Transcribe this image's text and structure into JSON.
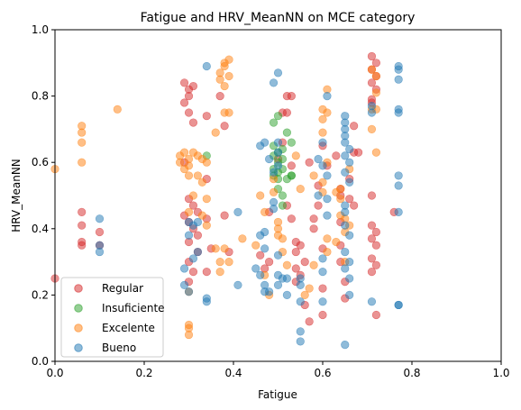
{
  "chart_data": {
    "type": "scatter",
    "title": "Fatigue and HRV_MeanNN on MCE category",
    "xlabel": "Fatigue",
    "ylabel": "HRV_MeanNN",
    "xlim": [
      0,
      1
    ],
    "ylim": [
      0,
      1
    ],
    "xticks": [
      "0.0",
      "0.2",
      "0.4",
      "0.6",
      "0.8",
      "1.0"
    ],
    "yticks": [
      "0.0",
      "0.2",
      "0.4",
      "0.6",
      "0.8",
      "1.0"
    ],
    "grid": false,
    "legend_position": "bottom-left",
    "series": [
      {
        "name": "Regular",
        "color": "#d62728",
        "points": [
          [
            0.0,
            0.25
          ],
          [
            0.06,
            0.45
          ],
          [
            0.06,
            0.41
          ],
          [
            0.06,
            0.36
          ],
          [
            0.06,
            0.35
          ],
          [
            0.1,
            0.35
          ],
          [
            0.1,
            0.39
          ],
          [
            0.29,
            0.84
          ],
          [
            0.3,
            0.82
          ],
          [
            0.29,
            0.78
          ],
          [
            0.3,
            0.8
          ],
          [
            0.31,
            0.83
          ],
          [
            0.3,
            0.75
          ],
          [
            0.31,
            0.72
          ],
          [
            0.29,
            0.6
          ],
          [
            0.3,
            0.49
          ],
          [
            0.31,
            0.47
          ],
          [
            0.29,
            0.44
          ],
          [
            0.3,
            0.42
          ],
          [
            0.31,
            0.4
          ],
          [
            0.32,
            0.38
          ],
          [
            0.3,
            0.36
          ],
          [
            0.32,
            0.33
          ],
          [
            0.3,
            0.3
          ],
          [
            0.31,
            0.27
          ],
          [
            0.3,
            0.24
          ],
          [
            0.32,
            0.45
          ],
          [
            0.34,
            0.74
          ],
          [
            0.34,
            0.55
          ],
          [
            0.34,
            0.43
          ],
          [
            0.35,
            0.34
          ],
          [
            0.34,
            0.27
          ],
          [
            0.37,
            0.8
          ],
          [
            0.38,
            0.71
          ],
          [
            0.38,
            0.44
          ],
          [
            0.39,
            0.33
          ],
          [
            0.46,
            0.32
          ],
          [
            0.47,
            0.28
          ],
          [
            0.48,
            0.3
          ],
          [
            0.48,
            0.45
          ],
          [
            0.5,
            0.61
          ],
          [
            0.51,
            0.66
          ],
          [
            0.51,
            0.75
          ],
          [
            0.52,
            0.75
          ],
          [
            0.52,
            0.8
          ],
          [
            0.53,
            0.8
          ],
          [
            0.53,
            0.59
          ],
          [
            0.52,
            0.47
          ],
          [
            0.53,
            0.43
          ],
          [
            0.54,
            0.36
          ],
          [
            0.54,
            0.33
          ],
          [
            0.54,
            0.28
          ],
          [
            0.54,
            0.24
          ],
          [
            0.55,
            0.35
          ],
          [
            0.55,
            0.26
          ],
          [
            0.56,
            0.3
          ],
          [
            0.56,
            0.17
          ],
          [
            0.57,
            0.12
          ],
          [
            0.57,
            0.6
          ],
          [
            0.58,
            0.43
          ],
          [
            0.58,
            0.4
          ],
          [
            0.59,
            0.53
          ],
          [
            0.59,
            0.47
          ],
          [
            0.6,
            0.34
          ],
          [
            0.6,
            0.22
          ],
          [
            0.6,
            0.14
          ],
          [
            0.6,
            0.65
          ],
          [
            0.61,
            0.59
          ],
          [
            0.63,
            0.62
          ],
          [
            0.64,
            0.52
          ],
          [
            0.64,
            0.5
          ],
          [
            0.64,
            0.42
          ],
          [
            0.64,
            0.35
          ],
          [
            0.64,
            0.3
          ],
          [
            0.65,
            0.24
          ],
          [
            0.65,
            0.19
          ],
          [
            0.66,
            0.55
          ],
          [
            0.66,
            0.49
          ],
          [
            0.67,
            0.71
          ],
          [
            0.67,
            0.63
          ],
          [
            0.68,
            0.63
          ],
          [
            0.67,
            0.47
          ],
          [
            0.71,
            0.92
          ],
          [
            0.72,
            0.9
          ],
          [
            0.71,
            0.88
          ],
          [
            0.72,
            0.86
          ],
          [
            0.71,
            0.84
          ],
          [
            0.72,
            0.82
          ],
          [
            0.71,
            0.79
          ],
          [
            0.71,
            0.78
          ],
          [
            0.71,
            0.5
          ],
          [
            0.71,
            0.41
          ],
          [
            0.72,
            0.39
          ],
          [
            0.71,
            0.37
          ],
          [
            0.72,
            0.35
          ],
          [
            0.71,
            0.31
          ],
          [
            0.72,
            0.29
          ],
          [
            0.71,
            0.27
          ],
          [
            0.72,
            0.14
          ],
          [
            0.76,
            0.45
          ]
        ]
      },
      {
        "name": "Insuficiente",
        "color": "#2ca02c",
        "points": [
          [
            0.34,
            0.62
          ],
          [
            0.49,
            0.72
          ],
          [
            0.49,
            0.65
          ],
          [
            0.49,
            0.62
          ],
          [
            0.49,
            0.58
          ],
          [
            0.49,
            0.56
          ],
          [
            0.5,
            0.57
          ],
          [
            0.5,
            0.55
          ],
          [
            0.5,
            0.6
          ],
          [
            0.5,
            0.63
          ],
          [
            0.51,
            0.64
          ],
          [
            0.51,
            0.61
          ],
          [
            0.51,
            0.58
          ],
          [
            0.5,
            0.52
          ],
          [
            0.51,
            0.5
          ],
          [
            0.51,
            0.47
          ],
          [
            0.52,
            0.55
          ],
          [
            0.53,
            0.56
          ],
          [
            0.52,
            0.69
          ],
          [
            0.53,
            0.66
          ],
          [
            0.53,
            0.56
          ],
          [
            0.5,
            0.74
          ]
        ]
      },
      {
        "name": "Excelente",
        "color": "#ff7f0e",
        "points": [
          [
            0.0,
            0.58
          ],
          [
            0.06,
            0.71
          ],
          [
            0.06,
            0.69
          ],
          [
            0.06,
            0.66
          ],
          [
            0.06,
            0.6
          ],
          [
            0.14,
            0.76
          ],
          [
            0.28,
            0.62
          ],
          [
            0.29,
            0.63
          ],
          [
            0.28,
            0.6
          ],
          [
            0.29,
            0.58
          ],
          [
            0.3,
            0.56
          ],
          [
            0.3,
            0.61
          ],
          [
            0.31,
            0.63
          ],
          [
            0.3,
            0.59
          ],
          [
            0.32,
            0.62
          ],
          [
            0.33,
            0.61
          ],
          [
            0.34,
            0.6
          ],
          [
            0.32,
            0.56
          ],
          [
            0.31,
            0.5
          ],
          [
            0.3,
            0.45
          ],
          [
            0.3,
            0.21
          ],
          [
            0.3,
            0.11
          ],
          [
            0.3,
            0.08
          ],
          [
            0.3,
            0.1
          ],
          [
            0.33,
            0.54
          ],
          [
            0.34,
            0.49
          ],
          [
            0.33,
            0.44
          ],
          [
            0.34,
            0.41
          ],
          [
            0.36,
            0.34
          ],
          [
            0.37,
            0.3
          ],
          [
            0.37,
            0.27
          ],
          [
            0.37,
            0.87
          ],
          [
            0.37,
            0.85
          ],
          [
            0.38,
            0.9
          ],
          [
            0.39,
            0.91
          ],
          [
            0.38,
            0.89
          ],
          [
            0.39,
            0.86
          ],
          [
            0.38,
            0.83
          ],
          [
            0.38,
            0.75
          ],
          [
            0.39,
            0.75
          ],
          [
            0.36,
            0.69
          ],
          [
            0.38,
            0.34
          ],
          [
            0.39,
            0.3
          ],
          [
            0.42,
            0.37
          ],
          [
            0.45,
            0.35
          ],
          [
            0.46,
            0.5
          ],
          [
            0.47,
            0.45
          ],
          [
            0.47,
            0.26
          ],
          [
            0.48,
            0.2
          ],
          [
            0.49,
            0.55
          ],
          [
            0.49,
            0.51
          ],
          [
            0.5,
            0.42
          ],
          [
            0.5,
            0.38
          ],
          [
            0.5,
            0.4
          ],
          [
            0.51,
            0.37
          ],
          [
            0.51,
            0.33
          ],
          [
            0.52,
            0.29
          ],
          [
            0.54,
            0.62
          ],
          [
            0.55,
            0.52
          ],
          [
            0.56,
            0.2
          ],
          [
            0.57,
            0.22
          ],
          [
            0.58,
            0.29
          ],
          [
            0.58,
            0.56
          ],
          [
            0.6,
            0.76
          ],
          [
            0.6,
            0.73
          ],
          [
            0.6,
            0.69
          ],
          [
            0.61,
            0.75
          ],
          [
            0.61,
            0.6
          ],
          [
            0.6,
            0.54
          ],
          [
            0.6,
            0.51
          ],
          [
            0.61,
            0.37
          ],
          [
            0.61,
            0.33
          ],
          [
            0.61,
            0.82
          ],
          [
            0.63,
            0.36
          ],
          [
            0.63,
            0.51
          ],
          [
            0.64,
            0.52
          ],
          [
            0.64,
            0.49
          ],
          [
            0.64,
            0.44
          ],
          [
            0.65,
            0.43
          ],
          [
            0.65,
            0.39
          ],
          [
            0.65,
            0.3
          ],
          [
            0.66,
            0.58
          ],
          [
            0.66,
            0.41
          ],
          [
            0.71,
            0.76
          ],
          [
            0.72,
            0.76
          ],
          [
            0.72,
            0.63
          ],
          [
            0.71,
            0.88
          ],
          [
            0.72,
            0.86
          ],
          [
            0.72,
            0.81
          ],
          [
            0.71,
            0.7
          ]
        ]
      },
      {
        "name": "Bueno",
        "color": "#1f77b4",
        "points": [
          [
            0.1,
            0.43
          ],
          [
            0.1,
            0.35
          ],
          [
            0.1,
            0.33
          ],
          [
            0.29,
            0.28
          ],
          [
            0.29,
            0.23
          ],
          [
            0.3,
            0.21
          ],
          [
            0.3,
            0.42
          ],
          [
            0.3,
            0.38
          ],
          [
            0.31,
            0.41
          ],
          [
            0.32,
            0.42
          ],
          [
            0.32,
            0.33
          ],
          [
            0.31,
            0.31
          ],
          [
            0.34,
            0.89
          ],
          [
            0.34,
            0.19
          ],
          [
            0.34,
            0.18
          ],
          [
            0.41,
            0.45
          ],
          [
            0.41,
            0.23
          ],
          [
            0.45,
            0.28
          ],
          [
            0.46,
            0.26
          ],
          [
            0.46,
            0.38
          ],
          [
            0.47,
            0.39
          ],
          [
            0.47,
            0.34
          ],
          [
            0.47,
            0.23
          ],
          [
            0.48,
            0.21
          ],
          [
            0.46,
            0.65
          ],
          [
            0.47,
            0.66
          ],
          [
            0.47,
            0.21
          ],
          [
            0.48,
            0.61
          ],
          [
            0.49,
            0.84
          ],
          [
            0.5,
            0.87
          ],
          [
            0.5,
            0.66
          ],
          [
            0.5,
            0.63
          ],
          [
            0.5,
            0.59
          ],
          [
            0.49,
            0.57
          ],
          [
            0.49,
            0.48
          ],
          [
            0.49,
            0.46
          ],
          [
            0.5,
            0.32
          ],
          [
            0.5,
            0.26
          ],
          [
            0.5,
            0.23
          ],
          [
            0.51,
            0.25
          ],
          [
            0.52,
            0.25
          ],
          [
            0.52,
            0.2
          ],
          [
            0.55,
            0.23
          ],
          [
            0.55,
            0.25
          ],
          [
            0.55,
            0.18
          ],
          [
            0.55,
            0.09
          ],
          [
            0.55,
            0.06
          ],
          [
            0.59,
            0.5
          ],
          [
            0.59,
            0.61
          ],
          [
            0.6,
            0.66
          ],
          [
            0.6,
            0.59
          ],
          [
            0.61,
            0.8
          ],
          [
            0.61,
            0.56
          ],
          [
            0.61,
            0.49
          ],
          [
            0.61,
            0.44
          ],
          [
            0.6,
            0.31
          ],
          [
            0.6,
            0.27
          ],
          [
            0.6,
            0.18
          ],
          [
            0.65,
            0.74
          ],
          [
            0.65,
            0.72
          ],
          [
            0.65,
            0.7
          ],
          [
            0.65,
            0.68
          ],
          [
            0.65,
            0.66
          ],
          [
            0.65,
            0.62
          ],
          [
            0.66,
            0.6
          ],
          [
            0.65,
            0.57
          ],
          [
            0.66,
            0.54
          ],
          [
            0.65,
            0.47
          ],
          [
            0.65,
            0.45
          ],
          [
            0.65,
            0.41
          ],
          [
            0.66,
            0.38
          ],
          [
            0.65,
            0.33
          ],
          [
            0.66,
            0.3
          ],
          [
            0.65,
            0.28
          ],
          [
            0.66,
            0.25
          ],
          [
            0.66,
            0.2
          ],
          [
            0.65,
            0.05
          ],
          [
            0.66,
            0.64
          ],
          [
            0.71,
            0.77
          ],
          [
            0.71,
            0.75
          ],
          [
            0.71,
            0.18
          ],
          [
            0.77,
            0.89
          ],
          [
            0.77,
            0.88
          ],
          [
            0.77,
            0.85
          ],
          [
            0.77,
            0.76
          ],
          [
            0.77,
            0.75
          ],
          [
            0.77,
            0.56
          ],
          [
            0.77,
            0.53
          ],
          [
            0.77,
            0.45
          ],
          [
            0.77,
            0.17
          ],
          [
            0.77,
            0.17
          ]
        ]
      }
    ]
  }
}
